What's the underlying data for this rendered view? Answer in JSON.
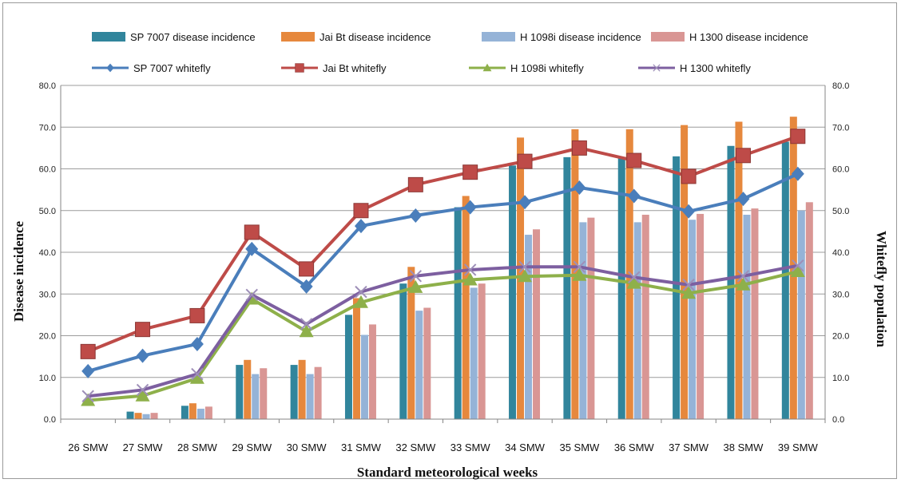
{
  "chart_data": {
    "type": "bar",
    "xlabel": "Standard meteorological weeks",
    "ylabel": "Disease incidence",
    "y2label": "Whitefly population",
    "ylim": [
      0,
      80
    ],
    "y2lim": [
      0,
      80
    ],
    "yticks": [
      "0.0",
      "10.0",
      "20.0",
      "30.0",
      "40.0",
      "50.0",
      "60.0",
      "70.0",
      "80.0"
    ],
    "grid": true,
    "categories": [
      "26 SMW",
      "27 SMW",
      "28 SMW",
      "29 SMW",
      "30 SMW",
      "31 SMW",
      "32 SMW",
      "33 SMW",
      "34 SMW",
      "35 SMW",
      "36 SMW",
      "37 SMW",
      "38 SMW",
      "39 SMW"
    ],
    "bar_series": [
      {
        "name": "SP 7007 disease incidence",
        "color": "#31859c",
        "values": [
          0,
          1.8,
          3.2,
          13.0,
          13.0,
          25.0,
          32.5,
          50.8,
          60.8,
          62.8,
          62.8,
          63.0,
          65.5,
          66.5
        ]
      },
      {
        "name": "Jai Bt disease incidence",
        "color": "#e6883d",
        "values": [
          0,
          1.5,
          3.8,
          14.2,
          14.2,
          29.0,
          36.5,
          53.5,
          67.5,
          69.5,
          69.5,
          70.5,
          71.3,
          72.5
        ]
      },
      {
        "name": "H 1098i disease incidence",
        "color": "#95b3d7",
        "values": [
          0,
          1.2,
          2.5,
          10.8,
          10.8,
          20.2,
          26.0,
          31.5,
          44.2,
          47.2,
          47.2,
          47.8,
          49.0,
          50.0
        ]
      },
      {
        "name": "H 1300 disease incidence",
        "color": "#d99694",
        "values": [
          0,
          1.5,
          3.0,
          12.2,
          12.5,
          22.7,
          26.7,
          32.5,
          45.5,
          48.3,
          49.0,
          49.2,
          50.5,
          52.0
        ]
      }
    ],
    "line_series": [
      {
        "name": "SP 7007 whitefly",
        "color": "#4a7ebb",
        "marker": "diamond",
        "values": [
          11.5,
          15.2,
          18.0,
          40.8,
          31.8,
          46.3,
          48.8,
          50.8,
          52.0,
          55.5,
          53.5,
          49.8,
          52.8,
          58.8
        ]
      },
      {
        "name": "Jai Bt whitefly",
        "color": "#be4b48",
        "marker": "square",
        "values": [
          16.2,
          21.5,
          24.8,
          44.8,
          36.0,
          50.0,
          56.2,
          59.2,
          61.8,
          65.0,
          62.0,
          58.2,
          63.2,
          67.8
        ]
      },
      {
        "name": "H 1098i whitefly",
        "color": "#8eb04a",
        "marker": "triangle",
        "values": [
          4.5,
          5.6,
          9.8,
          28.8,
          21.0,
          28.0,
          31.6,
          33.4,
          34.2,
          34.5,
          32.6,
          30.2,
          32.2,
          35.4
        ]
      },
      {
        "name": "H 1300 whitefly",
        "color": "#7d5fa0",
        "marker": "x",
        "values": [
          5.5,
          7.0,
          10.8,
          29.8,
          22.8,
          30.5,
          34.3,
          35.8,
          36.5,
          36.5,
          34.0,
          32.2,
          34.3,
          36.8
        ]
      }
    ]
  }
}
